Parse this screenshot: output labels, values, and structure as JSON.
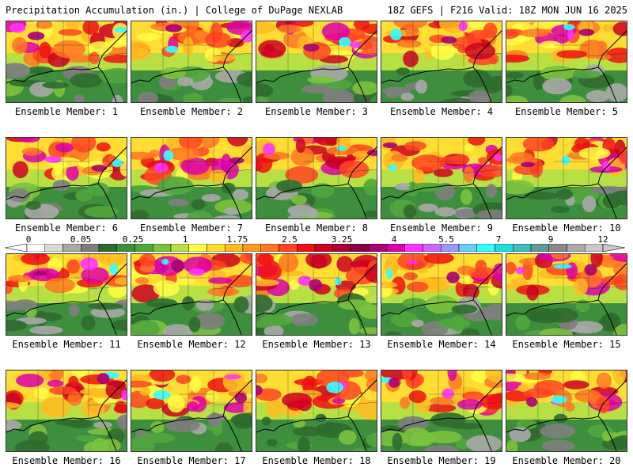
{
  "header": {
    "left": "Precipitation Accumulation (in.) | College of DuPage NEXLAB",
    "right": "18Z GEFS | F216 Valid: 18Z MON JUN 16 2025"
  },
  "colorbar": {
    "tick_labels": [
      "0",
      "0.05",
      "0.25",
      "1",
      "1.75",
      "2.5",
      "3.25",
      "4",
      "5.5",
      "7",
      "9",
      "12"
    ],
    "colors": [
      "#ffffff",
      "#d9d9d9",
      "#a8a8a8",
      "#7e7e7e",
      "#2f6b2f",
      "#3d8f3d",
      "#51a63d",
      "#7cc23e",
      "#b8e044",
      "#ffff44",
      "#ffdd33",
      "#ffbb22",
      "#ff9922",
      "#ff7722",
      "#ff4422",
      "#ee1111",
      "#cc0022",
      "#aa0033",
      "#880044",
      "#aa0077",
      "#dd00aa",
      "#ff33ff",
      "#cc66ff",
      "#9999ff",
      "#66ccff",
      "#33ffff",
      "#22dddd",
      "#44bbbb",
      "#669999",
      "#888888",
      "#aaaaaa",
      "#c8c8c8"
    ]
  },
  "panels": [
    {
      "label": "Ensemble Member: 1"
    },
    {
      "label": "Ensemble Member: 2"
    },
    {
      "label": "Ensemble Member: 3"
    },
    {
      "label": "Ensemble Member: 4"
    },
    {
      "label": "Ensemble Member: 5"
    },
    {
      "label": "Ensemble Member: 6"
    },
    {
      "label": "Ensemble Member: 7"
    },
    {
      "label": "Ensemble Member: 8"
    },
    {
      "label": "Ensemble Member: 9"
    },
    {
      "label": "Ensemble Member: 10"
    },
    {
      "label": "Ensemble Member: 11"
    },
    {
      "label": "Ensemble Member: 12"
    },
    {
      "label": "Ensemble Member: 13"
    },
    {
      "label": "Ensemble Member: 14"
    },
    {
      "label": "Ensemble Member: 15"
    },
    {
      "label": "Ensemble Member: 16"
    },
    {
      "label": "Ensemble Member: 17"
    },
    {
      "label": "Ensemble Member: 18"
    },
    {
      "label": "Ensemble Member: 19"
    },
    {
      "label": "Ensemble Member: 20"
    }
  ]
}
